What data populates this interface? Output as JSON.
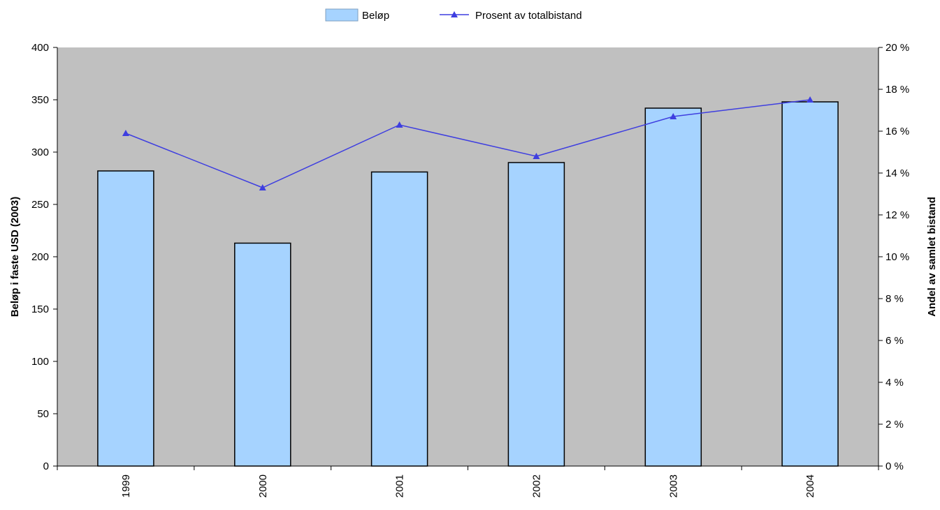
{
  "chart_data": {
    "type": "bar",
    "categories": [
      "1999",
      "2000",
      "2001",
      "2002",
      "2003",
      "2004"
    ],
    "series": [
      {
        "name": "Beløp",
        "type": "bar",
        "axis": "left",
        "values": [
          282,
          213,
          281,
          290,
          342,
          348
        ]
      },
      {
        "name": "Prosent av totalbistand",
        "type": "line",
        "axis": "right",
        "marker": "triangle",
        "values": [
          15.9,
          13.3,
          16.3,
          14.8,
          16.7,
          17.5
        ]
      }
    ],
    "ylabel": "Beløp i faste USD (2003)",
    "y2label": "Andel av samlet bistand",
    "ylim": [
      0,
      400
    ],
    "y2lim": [
      0,
      20
    ],
    "yticks": [
      0,
      50,
      100,
      150,
      200,
      250,
      300,
      350,
      400
    ],
    "y2ticks": [
      "0 %",
      "2 %",
      "4 %",
      "6 %",
      "8 %",
      "10 %",
      "12 %",
      "14 %",
      "16 %",
      "18 %",
      "20 %"
    ],
    "grid": false,
    "legend_position": "top-center",
    "colors": {
      "plot_background": "#c0c0c0",
      "bar_fill": "#a6d3ff",
      "line": "#3e3ee0",
      "marker": "#3e3ee0"
    }
  }
}
